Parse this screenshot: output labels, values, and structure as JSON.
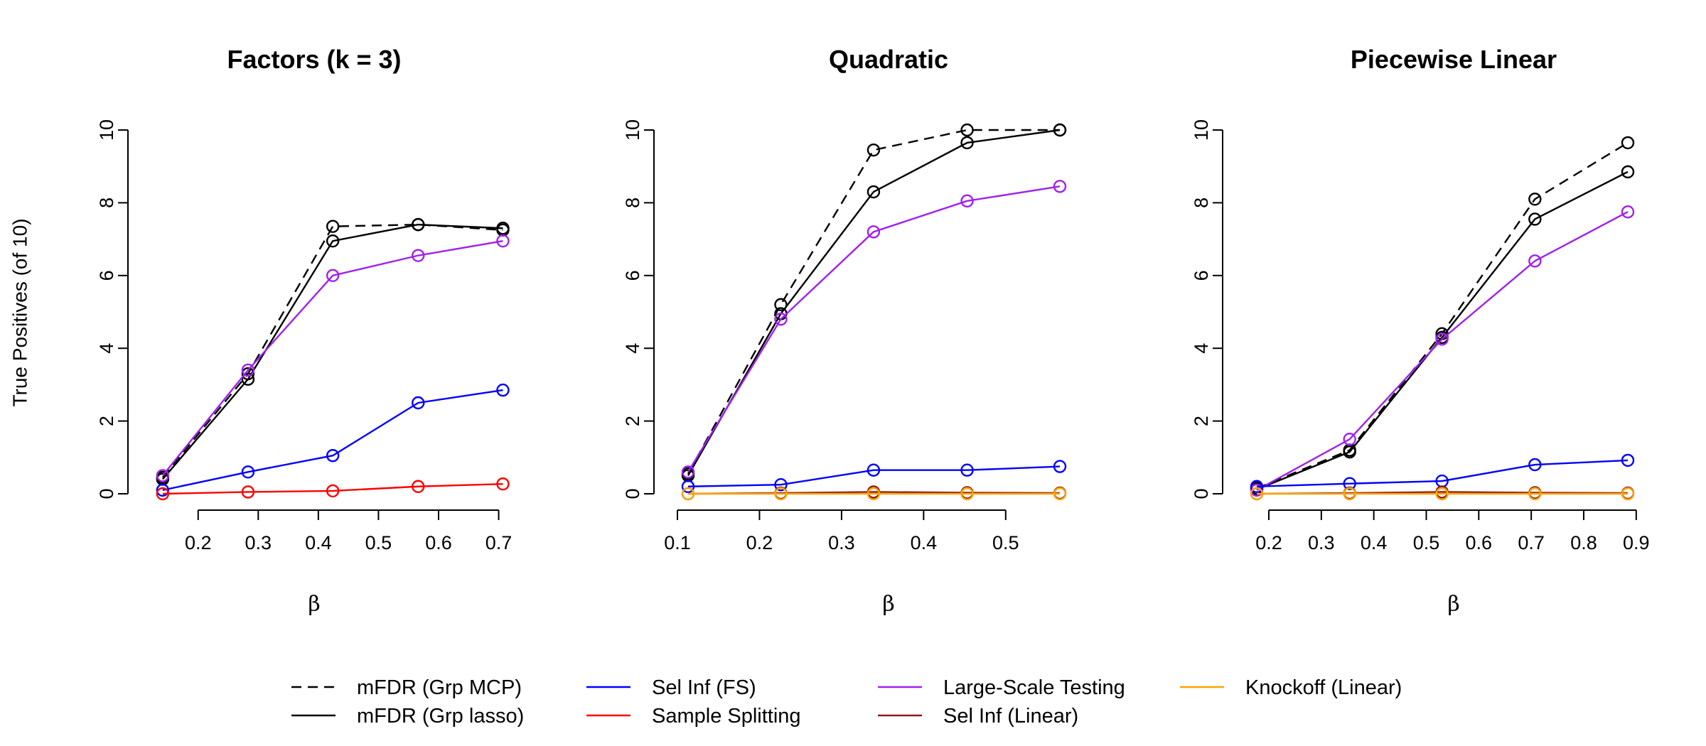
{
  "legend": [
    {
      "label": "mFDR (Grp MCP)",
      "color": "#000000",
      "dash": true
    },
    {
      "label": "mFDR (Grp lasso)",
      "color": "#000000",
      "dash": false
    },
    {
      "label": "Sel Inf (FS)",
      "color": "#0000FF",
      "dash": false
    },
    {
      "label": "Sample Splitting",
      "color": "#FF0000",
      "dash": false
    },
    {
      "label": "Large-Scale Testing",
      "color": "#A020F0",
      "dash": false
    },
    {
      "label": "Sel Inf (Linear)",
      "color": "#8B1A1A",
      "dash": false
    },
    {
      "label": "Knockoff (Linear)",
      "color": "#FFA500",
      "dash": false
    }
  ],
  "chart_data": [
    {
      "type": "line",
      "title": "Factors (k = 3)",
      "xlabel": "β",
      "ylabel": "True Positives (of 10)",
      "xlim": [
        0.14,
        0.71
      ],
      "ylim": [
        0,
        10
      ],
      "xticks": [
        0.2,
        0.3,
        0.4,
        0.5,
        0.6,
        0.7
      ],
      "yticks": [
        0,
        2,
        4,
        6,
        8,
        10
      ],
      "x": [
        0.141,
        0.283,
        0.424,
        0.566,
        0.707
      ],
      "series": [
        {
          "name": "mFDR (Grp MCP)",
          "color": "#000000",
          "dash": true,
          "values": [
            0.45,
            3.3,
            7.35,
            7.4,
            7.25
          ]
        },
        {
          "name": "mFDR (Grp lasso)",
          "color": "#000000",
          "dash": false,
          "values": [
            0.4,
            3.15,
            6.95,
            7.4,
            7.3
          ]
        },
        {
          "name": "Large-Scale Testing",
          "color": "#A020F0",
          "dash": false,
          "values": [
            0.5,
            3.4,
            6.0,
            6.55,
            6.95
          ]
        },
        {
          "name": "Sel Inf (FS)",
          "color": "#0000FF",
          "dash": false,
          "values": [
            0.1,
            0.6,
            1.05,
            2.5,
            2.85
          ]
        },
        {
          "name": "Sample Splitting",
          "color": "#FF0000",
          "dash": false,
          "values": [
            0.0,
            0.05,
            0.08,
            0.2,
            0.27
          ]
        }
      ]
    },
    {
      "type": "line",
      "title": "Quadratic",
      "xlabel": "β",
      "ylabel": "",
      "xlim": [
        0.113,
        0.566
      ],
      "ylim": [
        0,
        10
      ],
      "xticks": [
        0.1,
        0.2,
        0.3,
        0.4,
        0.5
      ],
      "yticks": [
        0,
        2,
        4,
        6,
        8,
        10
      ],
      "x": [
        0.113,
        0.226,
        0.339,
        0.453,
        0.566
      ],
      "series": [
        {
          "name": "mFDR (Grp MCP)",
          "color": "#000000",
          "dash": true,
          "values": [
            0.55,
            5.2,
            9.45,
            10.0,
            10.0
          ]
        },
        {
          "name": "mFDR (Grp lasso)",
          "color": "#000000",
          "dash": false,
          "values": [
            0.5,
            4.95,
            8.3,
            9.65,
            10.0
          ]
        },
        {
          "name": "Large-Scale Testing",
          "color": "#A020F0",
          "dash": false,
          "values": [
            0.6,
            4.8,
            7.2,
            8.05,
            8.45
          ]
        },
        {
          "name": "Sel Inf (FS)",
          "color": "#0000FF",
          "dash": false,
          "values": [
            0.2,
            0.25,
            0.65,
            0.65,
            0.75
          ]
        },
        {
          "name": "Sel Inf (Linear)",
          "color": "#8B1A1A",
          "dash": false,
          "values": [
            0.0,
            0.02,
            0.05,
            0.03,
            0.02
          ]
        },
        {
          "name": "Knockoff (Linear)",
          "color": "#FFA500",
          "dash": false,
          "values": [
            0.0,
            0.0,
            0.0,
            0.0,
            0.0
          ]
        }
      ]
    },
    {
      "type": "line",
      "title": "Piecewise Linear",
      "xlabel": "β",
      "ylabel": "",
      "xlim": [
        0.177,
        0.884
      ],
      "ylim": [
        0,
        10
      ],
      "xticks": [
        0.2,
        0.3,
        0.4,
        0.5,
        0.6,
        0.7,
        0.8,
        0.9
      ],
      "yticks": [
        0,
        2,
        4,
        6,
        8,
        10
      ],
      "x": [
        0.177,
        0.354,
        0.53,
        0.707,
        0.884
      ],
      "series": [
        {
          "name": "mFDR (Grp MCP)",
          "color": "#000000",
          "dash": true,
          "values": [
            0.15,
            1.2,
            4.4,
            8.1,
            9.65
          ]
        },
        {
          "name": "mFDR (Grp lasso)",
          "color": "#000000",
          "dash": false,
          "values": [
            0.12,
            1.15,
            4.3,
            7.55,
            8.85
          ]
        },
        {
          "name": "Large-Scale Testing",
          "color": "#A020F0",
          "dash": false,
          "values": [
            0.1,
            1.5,
            4.25,
            6.4,
            7.75
          ]
        },
        {
          "name": "Sel Inf (FS)",
          "color": "#0000FF",
          "dash": false,
          "values": [
            0.2,
            0.28,
            0.35,
            0.8,
            0.92
          ]
        },
        {
          "name": "Sel Inf (Linear)",
          "color": "#8B1A1A",
          "dash": false,
          "values": [
            0.0,
            0.02,
            0.05,
            0.03,
            0.02
          ]
        },
        {
          "name": "Knockoff (Linear)",
          "color": "#FFA500",
          "dash": false,
          "values": [
            0.0,
            0.0,
            0.0,
            0.0,
            0.0
          ]
        }
      ]
    }
  ]
}
